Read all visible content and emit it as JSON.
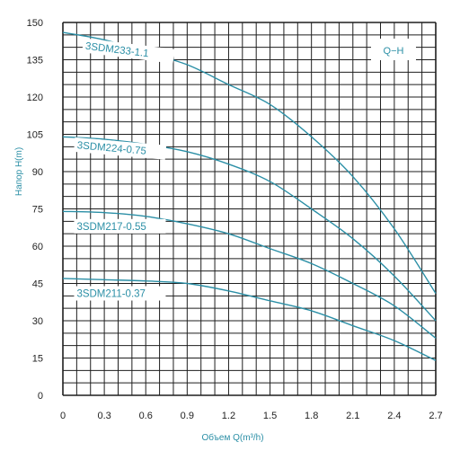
{
  "chart_data": {
    "type": "line",
    "title": "",
    "badge": "Q−H",
    "xlabel": "Объем Q(m³/h)",
    "ylabel": "Напор H(m)",
    "xlim": [
      0,
      2.7
    ],
    "ylim": [
      0,
      150
    ],
    "x_ticks": [
      "0",
      "0.3",
      "0.6",
      "0.9",
      "1.2",
      "1.5",
      "1.8",
      "2.1",
      "2.4",
      "2.7"
    ],
    "y_ticks": [
      "0",
      "15",
      "30",
      "45",
      "60",
      "75",
      "90",
      "105",
      "120",
      "135",
      "150"
    ],
    "grid": true,
    "line_color": "#2b8fa6",
    "series": [
      {
        "name": "3SDM233-1.1",
        "x": [
          0,
          0.3,
          0.6,
          0.9,
          1.2,
          1.5,
          1.8,
          2.1,
          2.4,
          2.7
        ],
        "y": [
          146,
          143,
          138,
          133,
          125,
          117,
          104,
          88,
          67,
          41
        ]
      },
      {
        "name": "3SDM224-0.75",
        "x": [
          0,
          0.3,
          0.6,
          0.9,
          1.2,
          1.5,
          1.8,
          2.1,
          2.4,
          2.7
        ],
        "y": [
          104,
          103,
          101,
          98,
          93,
          86,
          75,
          63,
          48,
          30
        ]
      },
      {
        "name": "3SDM217-0.55",
        "x": [
          0,
          0.3,
          0.6,
          0.9,
          1.2,
          1.5,
          1.8,
          2.1,
          2.4,
          2.7
        ],
        "y": [
          74,
          73.5,
          72,
          69,
          65,
          59,
          53,
          45,
          36,
          23
        ]
      },
      {
        "name": "3SDM211-0.37",
        "x": [
          0,
          0.3,
          0.6,
          0.9,
          1.2,
          1.5,
          1.8,
          2.1,
          2.4,
          2.7
        ],
        "y": [
          47,
          46.5,
          46,
          45,
          42,
          38,
          34,
          28,
          22,
          14
        ]
      }
    ]
  }
}
